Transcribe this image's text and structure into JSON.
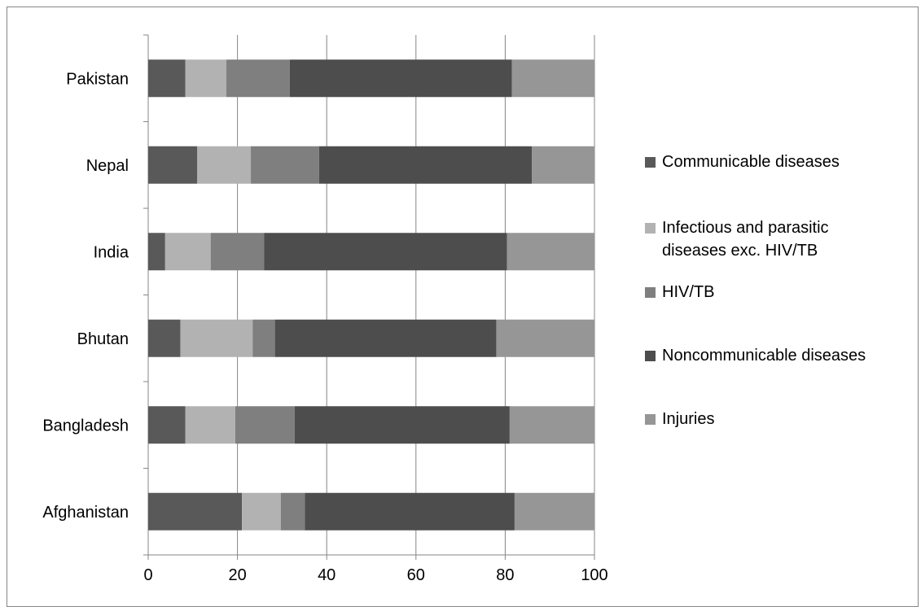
{
  "chart_data": {
    "type": "bar",
    "orientation": "horizontal",
    "stacked": true,
    "title": "",
    "xlabel": "",
    "ylabel": "",
    "xlim": [
      0,
      100
    ],
    "x_ticks": [
      "0",
      "20",
      "40",
      "60",
      "80",
      "100"
    ],
    "grid": "vertical",
    "legend_position": "right",
    "categories": [
      "Afghanistan",
      "Bangladesh",
      "Bhutan",
      "India",
      "Nepal",
      "Pakistan"
    ],
    "series": [
      {
        "name": "Communicable diseases",
        "color": "#595959",
        "values": [
          21,
          8.3,
          7.2,
          3.8,
          11,
          8.3
        ]
      },
      {
        "name": "Infectious and parasitic diseases exc. HIV/TB",
        "color": "#b2b2b2",
        "values": [
          8.7,
          11.2,
          16.2,
          10.2,
          12,
          9.2
        ]
      },
      {
        "name": "HIV/TB",
        "color": "#7f7f7f",
        "values": [
          5.4,
          13.3,
          5,
          12,
          15.3,
          14.2
        ]
      },
      {
        "name": "Noncommunicable diseases",
        "color": "#4d4d4d",
        "values": [
          47,
          48.2,
          49.6,
          54.4,
          47.7,
          49.8
        ]
      },
      {
        "name": "Injuries",
        "color": "#969696",
        "values": [
          17.9,
          19,
          22,
          19.6,
          14,
          18.5
        ]
      }
    ]
  }
}
